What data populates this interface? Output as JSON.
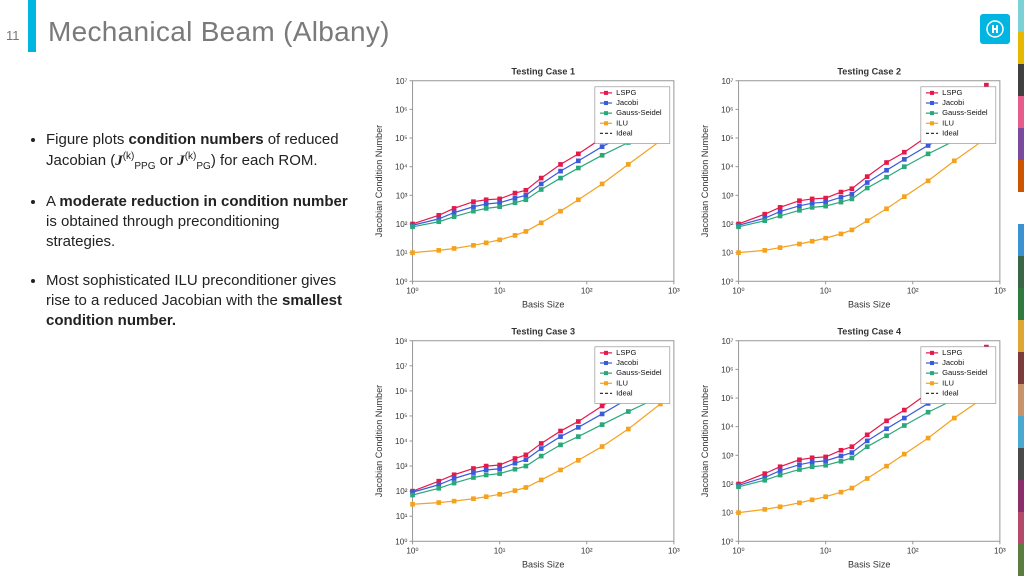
{
  "page_number": "11",
  "title": "Mechanical Beam (Albany)",
  "accent_color": "#00b5e2",
  "title_color": "#7a7a7a",
  "stripe_colors": [
    "#7bd1d6",
    "#e6b800",
    "#404040",
    "#e65c8a",
    "#7a4a9e",
    "#cc5500",
    "#ffffff",
    "#3b91d1",
    "#3a6646",
    "#2e7a3f",
    "#e0a635",
    "#7b3b3b",
    "#c5946b",
    "#4aa8d1",
    "#4a4a4a",
    "#8a2f6b",
    "#b34a6a",
    "#5a7d3f"
  ],
  "bullets": [
    {
      "pre": "Figure plots ",
      "b1": "condition numbers",
      "mid": " of reduced Jacobian (",
      "math": "J",
      "sup": "(k)",
      "sub1": "PPG",
      "or": " or ",
      "sub2": "PG",
      "post": ") for each ROM."
    },
    {
      "pre": "A ",
      "b1": "moderate reduction in condition number",
      "post": " is obtained through preconditioning strategies."
    },
    {
      "pre": "Most sophisticated ILU preconditioner gives rise to a reduced Jacobian with the ",
      "b1": "smallest condition number.",
      "post": ""
    }
  ],
  "legend": {
    "items": [
      {
        "label": "LSPG",
        "color": "#e6194b",
        "marker": "square"
      },
      {
        "label": "Jacobi",
        "color": "#3b5bdb",
        "marker": "square"
      },
      {
        "label": "Gauss-Seidel",
        "color": "#2aa879",
        "marker": "square"
      },
      {
        "label": "ILU",
        "color": "#f4a21f",
        "marker": "square"
      },
      {
        "label": "Ideal",
        "color": "#333333",
        "marker": "dash"
      }
    ]
  },
  "shared_chart": {
    "xlabel": "Basis Size",
    "ylabel": "Jacobian Condition Number",
    "xlog": true,
    "ylog": true,
    "xlim": [
      1,
      1000
    ],
    "xticks": [
      1,
      10,
      100,
      1000
    ],
    "plot_bg": "#ffffff",
    "grid": "none",
    "box_color": "#999999",
    "legend_pos": "top-right-inside"
  },
  "x_points": [
    1,
    2,
    3,
    5,
    7,
    10,
    15,
    20,
    30,
    50,
    80,
    150,
    300,
    700
  ],
  "charts": [
    {
      "title": "Testing Case 1",
      "ylim": [
        1,
        10000000.0
      ],
      "yticks": [
        1,
        10,
        100,
        1000,
        10000.0,
        100000.0,
        1000000.0,
        10000000.0
      ],
      "series": {
        "LSPG": [
          100,
          200,
          350,
          600,
          700,
          750,
          1200,
          1500,
          4000,
          12000.0,
          28000.0,
          100000.0,
          400000.0,
          5000000.0
        ],
        "Jacobi": [
          90,
          150,
          250,
          400,
          500,
          550,
          800,
          1000,
          2500,
          7000,
          16000.0,
          50000.0,
          150000.0,
          1000000.0
        ],
        "Gauss-Seidel": [
          80,
          120,
          180,
          280,
          350,
          400,
          550,
          700,
          1600,
          4000,
          9000,
          25000.0,
          70000.0,
          300000.0
        ],
        "ILU": [
          10,
          12,
          14,
          18,
          22,
          28,
          40,
          55,
          110,
          280,
          700,
          2500,
          12000.0,
          80000.0
        ]
      }
    },
    {
      "title": "Testing Case 2",
      "ylim": [
        1,
        10000000.0
      ],
      "yticks": [
        1,
        10,
        100,
        1000,
        10000.0,
        100000.0,
        1000000.0,
        10000000.0
      ],
      "series": {
        "LSPG": [
          100,
          220,
          380,
          650,
          750,
          800,
          1300,
          1700,
          4500,
          14000.0,
          32000.0,
          120000.0,
          500000.0,
          7000000.0
        ],
        "Jacobi": [
          90,
          160,
          270,
          430,
          530,
          580,
          850,
          1100,
          2800,
          7500,
          18000.0,
          55000.0,
          180000.0,
          1200000.0
        ],
        "Gauss-Seidel": [
          80,
          130,
          190,
          300,
          380,
          420,
          580,
          750,
          1800,
          4300,
          10000.0,
          28000.0,
          80000.0,
          350000.0
        ],
        "ILU": [
          10,
          12,
          15,
          20,
          25,
          32,
          45,
          62,
          130,
          340,
          900,
          3200,
          16000.0,
          100000.0
        ]
      }
    },
    {
      "title": "Testing Case 3",
      "ylim": [
        1,
        100000000.0
      ],
      "yticks": [
        1,
        10,
        100,
        1000,
        10000.0,
        100000.0,
        1000000.0,
        10000000.0,
        100000000.0
      ],
      "series": {
        "LSPG": [
          100,
          250,
          450,
          800,
          1000,
          1100,
          2000,
          2800,
          8000,
          25000.0,
          60000.0,
          250000.0,
          1200000.0,
          30000000.0
        ],
        "Jacobi": [
          90,
          180,
          320,
          550,
          700,
          780,
          1300,
          1800,
          5000,
          15000.0,
          35000.0,
          120000.0,
          500000.0,
          3000000.0
        ],
        "Gauss-Seidel": [
          70,
          130,
          210,
          350,
          440,
          500,
          750,
          1000,
          2500,
          7000,
          15000.0,
          45000.0,
          150000.0,
          600000.0
        ],
        "ILU": [
          30,
          35,
          40,
          50,
          60,
          75,
          105,
          140,
          280,
          700,
          1700,
          6000,
          30000.0,
          300000.0
        ]
      }
    },
    {
      "title": "Testing Case 4",
      "ylim": [
        1,
        10000000.0
      ],
      "yticks": [
        1,
        10,
        100,
        1000,
        10000.0,
        100000.0,
        1000000.0,
        10000000.0
      ],
      "series": {
        "LSPG": [
          100,
          230,
          400,
          700,
          820,
          880,
          1500,
          2000,
          5200,
          16000.0,
          38000.0,
          150000.0,
          600000.0,
          6000000.0
        ],
        "Jacobi": [
          90,
          170,
          290,
          470,
          580,
          640,
          950,
          1250,
          3200,
          8500,
          20000.0,
          65000.0,
          220000.0,
          1300000.0
        ],
        "Gauss-Seidel": [
          80,
          135,
          205,
          320,
          400,
          450,
          620,
          810,
          2000,
          4800,
          11000.0,
          32000.0,
          90000.0,
          380000.0
        ],
        "ILU": [
          10,
          13,
          16,
          22,
          28,
          36,
          52,
          72,
          155,
          420,
          1100,
          4000,
          20000.0,
          120000.0
        ]
      }
    }
  ]
}
